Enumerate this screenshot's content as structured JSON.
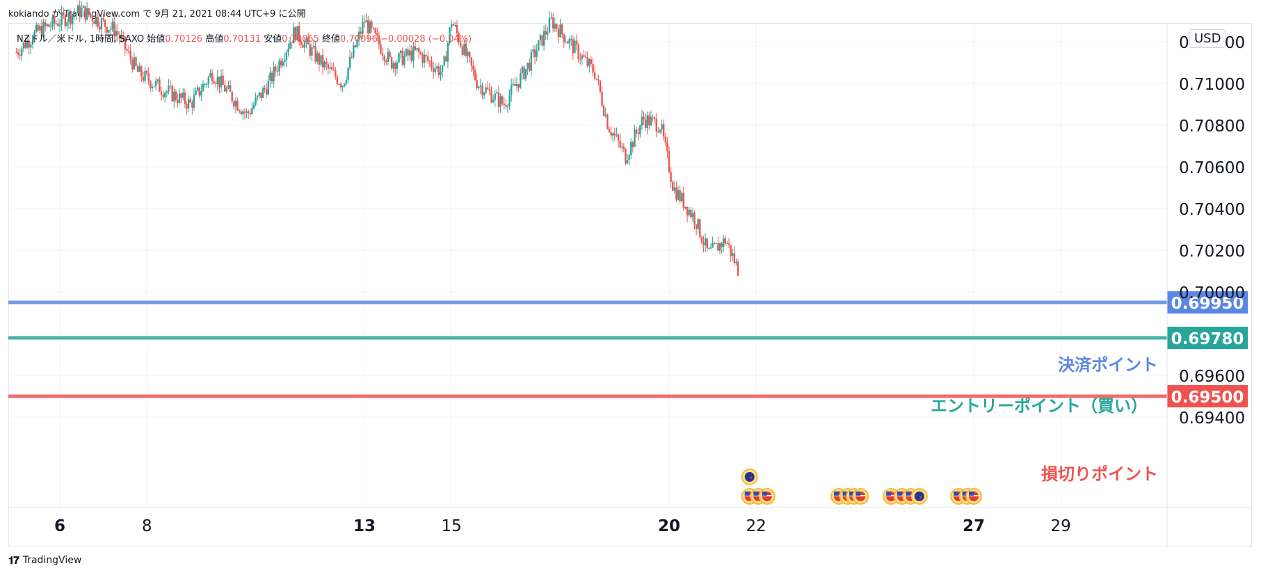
{
  "header": {
    "text": "kokiando が TradingView.com で 9月 21, 2021 08:44 UTC+9 に公開"
  },
  "legend": {
    "symbol": "NZドル／米ドル, 1時間, SAXO",
    "open_label": "始値",
    "open": "0.70126",
    "high_label": "高値",
    "high": "0.70131",
    "low_label": "安値",
    "low": "0.70065",
    "close_label": "終値",
    "close": "0.70096",
    "change": "−0.00028 (−0.04%)"
  },
  "currency": "USD",
  "footer": {
    "brand": "TradingView"
  },
  "colors": {
    "up": "#26a69a",
    "down": "#ef5350",
    "take_profit": "#5b86e5",
    "entry": "#26a69a",
    "stop": "#ef5350"
  },
  "chart_data": {
    "type": "candlestick",
    "title": "NZドル／米ドル, 1時間, SAXO",
    "ylim": [
      0.693,
      0.7135
    ],
    "y_ticks": [
      "0.71200",
      "0.71000",
      "0.70800",
      "0.70600",
      "0.70400",
      "0.70200",
      "0.70000",
      "0.69600",
      "0.69400"
    ],
    "y_tick_values": [
      0.712,
      0.71,
      0.708,
      0.706,
      0.704,
      0.702,
      0.7,
      0.696,
      0.694
    ],
    "x_ticks": [
      {
        "label": "6",
        "day": 6,
        "bold": true
      },
      {
        "label": "8",
        "day": 8,
        "bold": false
      },
      {
        "label": "13",
        "day": 13,
        "bold": true
      },
      {
        "label": "15",
        "day": 15,
        "bold": false
      },
      {
        "label": "20",
        "day": 20,
        "bold": true
      },
      {
        "label": "22",
        "day": 22,
        "bold": false
      },
      {
        "label": "27",
        "day": 27,
        "bold": true
      },
      {
        "label": "29",
        "day": 29,
        "bold": false
      }
    ],
    "price_path": [
      [
        5.0,
        0.7115
      ],
      [
        5.5,
        0.7125
      ],
      [
        6.5,
        0.7135
      ],
      [
        7.3,
        0.7125
      ],
      [
        7.8,
        0.7105
      ],
      [
        8.3,
        0.7098
      ],
      [
        9.0,
        0.709
      ],
      [
        9.5,
        0.7105
      ],
      [
        10.3,
        0.7085
      ],
      [
        10.8,
        0.71
      ],
      [
        11.4,
        0.7125
      ],
      [
        12.0,
        0.711
      ],
      [
        12.5,
        0.71
      ],
      [
        13.0,
        0.713
      ],
      [
        13.6,
        0.711
      ],
      [
        14.2,
        0.7115
      ],
      [
        14.8,
        0.7105
      ],
      [
        15.0,
        0.713
      ],
      [
        15.6,
        0.71
      ],
      [
        16.2,
        0.709
      ],
      [
        16.8,
        0.711
      ],
      [
        17.3,
        0.713
      ],
      [
        17.7,
        0.712
      ],
      [
        18.3,
        0.7105
      ],
      [
        18.6,
        0.708
      ],
      [
        19.0,
        0.7065
      ],
      [
        19.4,
        0.7083
      ],
      [
        19.8,
        0.708
      ],
      [
        20.1,
        0.705
      ],
      [
        20.6,
        0.7035
      ],
      [
        20.9,
        0.7018
      ],
      [
        21.3,
        0.7025
      ],
      [
        21.6,
        0.701
      ]
    ],
    "levels": [
      {
        "name": "決済ポイント",
        "value": 0.6995,
        "label": "0.69950",
        "color": "#5b86e5"
      },
      {
        "name": "エントリーポイント（買い）",
        "value": 0.6978,
        "label": "0.69780",
        "color": "#26a69a"
      },
      {
        "name": "損切りポイント",
        "value": 0.695,
        "label": "0.69500",
        "color": "#ef5350"
      }
    ],
    "events": [
      {
        "day": 21.85,
        "row": 0,
        "icon": "nz-flag-icon"
      },
      {
        "day": 21.85,
        "row": 1,
        "icon": "us-flag-icon"
      },
      {
        "day": 22.05,
        "row": 1,
        "icon": "us-flag-icon"
      },
      {
        "day": 22.25,
        "row": 1,
        "icon": "us-flag-icon"
      },
      {
        "day": 23.9,
        "row": 1,
        "icon": "us-flag-icon"
      },
      {
        "day": 24.1,
        "row": 1,
        "icon": "us-flag-icon"
      },
      {
        "day": 24.25,
        "row": 1,
        "icon": "us-flag-icon"
      },
      {
        "day": 24.4,
        "row": 1,
        "icon": "us-flag-icon"
      },
      {
        "day": 25.1,
        "row": 1,
        "icon": "us-flag-icon"
      },
      {
        "day": 25.35,
        "row": 1,
        "icon": "us-flag-icon"
      },
      {
        "day": 25.55,
        "row": 1,
        "icon": "us-flag-icon"
      },
      {
        "day": 25.75,
        "row": 1,
        "icon": "nz-flag-icon"
      },
      {
        "day": 26.65,
        "row": 1,
        "icon": "us-flag-icon"
      },
      {
        "day": 26.85,
        "row": 1,
        "icon": "us-flag-icon"
      },
      {
        "day": 27.0,
        "row": 1,
        "icon": "us-flag-icon"
      }
    ],
    "grid": true
  }
}
